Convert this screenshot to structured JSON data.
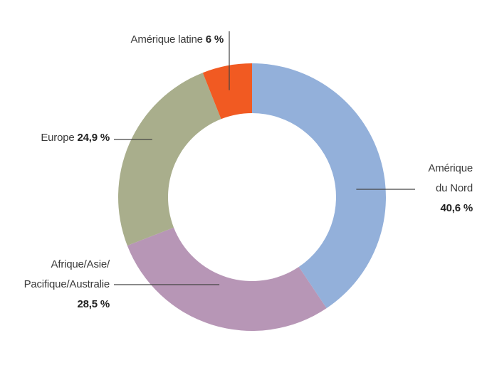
{
  "chart_data": {
    "type": "pie",
    "donut": true,
    "start": "top, clockwise",
    "slices": [
      {
        "label": "Amérique du Nord",
        "label_lines": [
          "Amérique",
          "du Nord"
        ],
        "value": 40.6,
        "value_text": "40,6 %",
        "color": "#93b0da"
      },
      {
        "label": "Afrique/Asie/Pacifique/Australie",
        "label_lines": [
          "Afrique/Asie/",
          "Pacifique/Australie"
        ],
        "value": 28.5,
        "value_text": "28,5 %",
        "color": "#b796b6"
      },
      {
        "label": "Europe",
        "label_lines": [
          "Europe"
        ],
        "value": 24.9,
        "value_text": "24,9 %",
        "color": "#a9ae8c"
      },
      {
        "label": "Amérique latine",
        "label_lines": [
          "Amérique latine"
        ],
        "value": 6,
        "value_text": "6 %",
        "color": "#f15a22"
      }
    ]
  }
}
